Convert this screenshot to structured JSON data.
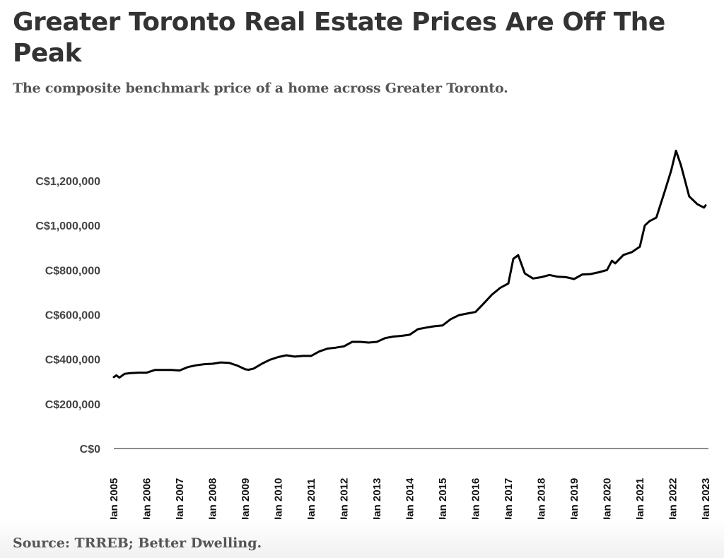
{
  "header": {
    "title": "Greater Toronto Real Estate Prices Are Off The Peak",
    "subtitle": "The composite benchmark price of a home across Greater Toronto."
  },
  "footer": {
    "source": "Source: TRREB; Better Dwelling."
  },
  "colors": {
    "line": "#000000",
    "axis": "#666666",
    "title": "#333333",
    "text": "#555555"
  },
  "chart_data": {
    "type": "line",
    "title": "Greater Toronto Real Estate Prices Are Off The Peak",
    "subtitle": "The composite benchmark price of a home across Greater Toronto.",
    "xlabel": "",
    "ylabel": "",
    "grid": false,
    "legend": "none",
    "ylim": [
      0,
      1200000
    ],
    "xlim": [
      2005.0,
      2023.0
    ],
    "y_ticks": [
      0,
      200000,
      400000,
      600000,
      800000,
      1000000,
      1200000
    ],
    "y_tick_labels": [
      "C$0",
      "C$200,000",
      "C$400,000",
      "C$600,000",
      "C$800,000",
      "C$1,000,000",
      "C$1,200,000"
    ],
    "x_ticks": [
      2005,
      2006,
      2007,
      2008,
      2009,
      2010,
      2011,
      2012,
      2013,
      2014,
      2015,
      2016,
      2017,
      2018,
      2019,
      2020,
      2021,
      2022,
      2023
    ],
    "x_tick_labels": [
      "Jan 2005",
      "Jan 2006",
      "Jan 2007",
      "Jan 2008",
      "Jan 2009",
      "Jan 2010",
      "Jan 2011",
      "Jan 2012",
      "Jan 2013",
      "Jan 2014",
      "Jan 2015",
      "Jan 2016",
      "Jan 2017",
      "Jan 2018",
      "Jan 2019",
      "Jan 2020",
      "Jan 2021",
      "Jan 2022",
      "Jan 2023"
    ],
    "series": [
      {
        "name": "Composite benchmark price",
        "x": [
          2005.0,
          2005.08,
          2005.17,
          2005.33,
          2005.5,
          2005.75,
          2006.0,
          2006.25,
          2006.5,
          2006.75,
          2007.0,
          2007.25,
          2007.5,
          2007.75,
          2008.0,
          2008.25,
          2008.5,
          2008.75,
          2009.0,
          2009.1,
          2009.25,
          2009.5,
          2009.75,
          2010.0,
          2010.25,
          2010.5,
          2010.75,
          2011.0,
          2011.25,
          2011.5,
          2011.75,
          2012.0,
          2012.25,
          2012.5,
          2012.75,
          2013.0,
          2013.25,
          2013.5,
          2013.75,
          2014.0,
          2014.25,
          2014.5,
          2014.75,
          2015.0,
          2015.25,
          2015.5,
          2015.75,
          2016.0,
          2016.25,
          2016.5,
          2016.75,
          2017.0,
          2017.15,
          2017.3,
          2017.5,
          2017.75,
          2018.0,
          2018.25,
          2018.5,
          2018.75,
          2019.0,
          2019.25,
          2019.5,
          2019.75,
          2020.0,
          2020.15,
          2020.25,
          2020.5,
          2020.75,
          2021.0,
          2021.15,
          2021.3,
          2021.5,
          2021.75,
          2021.95,
          2022.1,
          2022.25,
          2022.5,
          2022.75,
          2022.95,
          2023.0
        ],
        "y": [
          320000,
          328000,
          318000,
          335000,
          338000,
          340000,
          340000,
          352000,
          352000,
          352000,
          350000,
          365000,
          373000,
          378000,
          380000,
          386000,
          384000,
          372000,
          355000,
          353000,
          358000,
          380000,
          398000,
          410000,
          418000,
          412000,
          415000,
          415000,
          435000,
          448000,
          452000,
          458000,
          478000,
          478000,
          475000,
          478000,
          495000,
          502000,
          505000,
          510000,
          535000,
          542000,
          548000,
          552000,
          580000,
          598000,
          605000,
          612000,
          650000,
          690000,
          720000,
          740000,
          850000,
          867000,
          785000,
          762000,
          768000,
          778000,
          770000,
          768000,
          760000,
          780000,
          782000,
          790000,
          800000,
          842000,
          830000,
          868000,
          880000,
          905000,
          1000000,
          1020000,
          1035000,
          1150000,
          1245000,
          1335000,
          1270000,
          1130000,
          1095000,
          1080000,
          1090000
        ]
      }
    ]
  }
}
